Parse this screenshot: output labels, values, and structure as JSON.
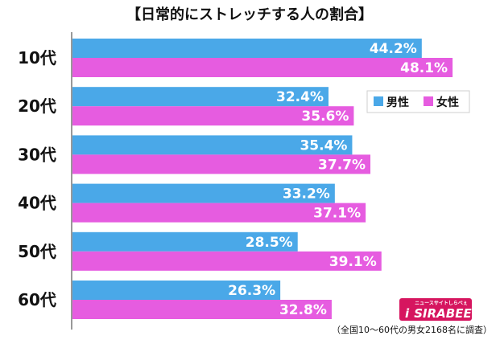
{
  "chart_data": {
    "type": "bar",
    "orientation": "horizontal",
    "title": "【日常的にストレッチする人の割合】",
    "categories": [
      "10代",
      "20代",
      "30代",
      "40代",
      "50代",
      "60代"
    ],
    "series": [
      {
        "name": "男性",
        "color": "#4aa8e8",
        "values": [
          44.2,
          32.4,
          35.4,
          33.2,
          28.5,
          26.3
        ]
      },
      {
        "name": "女性",
        "color": "#e65ce0",
        "values": [
          48.1,
          35.6,
          37.7,
          37.1,
          39.1,
          32.8
        ]
      }
    ],
    "value_labels": [
      [
        "44.2%",
        "32.4%",
        "35.4%",
        "33.2%",
        "28.5%",
        "26.3%"
      ],
      [
        "48.1%",
        "35.6%",
        "37.7%",
        "37.1%",
        "39.1%",
        "32.8%"
      ]
    ],
    "xlim": [
      0,
      55
    ],
    "grid": false,
    "legend_position": "right",
    "note": "（全国10〜60代の男女2168名に調査）"
  },
  "brand": {
    "name": "SIRABEE",
    "tagline": "ニュースサイトしらべぇ",
    "initial": "i",
    "color": "#d6155f"
  }
}
